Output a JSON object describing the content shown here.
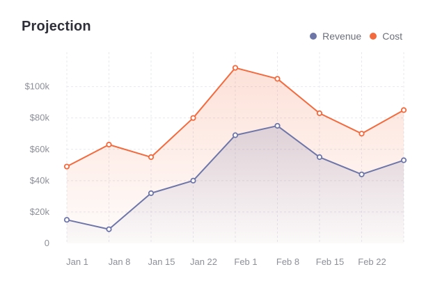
{
  "header": {
    "title": "Projection"
  },
  "colors": {
    "revenue": "#6e76a8",
    "cost": "#f26a3d",
    "grid": "#e7e8ee",
    "text": "#8c8f98"
  },
  "chart_data": {
    "type": "area",
    "title": "Projection",
    "categories": [
      "Jan 1",
      "Jan 8",
      "Jan 15",
      "Jan 22",
      "Feb 1",
      "Feb 8",
      "Feb 15",
      "Feb 22",
      ""
    ],
    "x_tick_labels": [
      "Jan 1",
      "Jan 8",
      "Jan 15",
      "Jan 22",
      "Feb 1",
      "Feb 8",
      "Feb 15",
      "Feb 22"
    ],
    "y_ticks": [
      0,
      20000,
      40000,
      60000,
      80000,
      100000
    ],
    "y_tick_labels": [
      "0",
      "$20k",
      "$40k",
      "$60k",
      "$80k",
      "$100k"
    ],
    "ylim": [
      0,
      122000
    ],
    "legend_position": "top-right",
    "series": [
      {
        "name": "Revenue",
        "color_key": "revenue",
        "values": [
          15000,
          9000,
          32000,
          40000,
          69000,
          75000,
          55000,
          44000,
          53000
        ]
      },
      {
        "name": "Cost",
        "color_key": "cost",
        "values": [
          49000,
          63000,
          55000,
          80000,
          112000,
          105000,
          83000,
          70000,
          85000
        ]
      }
    ]
  }
}
